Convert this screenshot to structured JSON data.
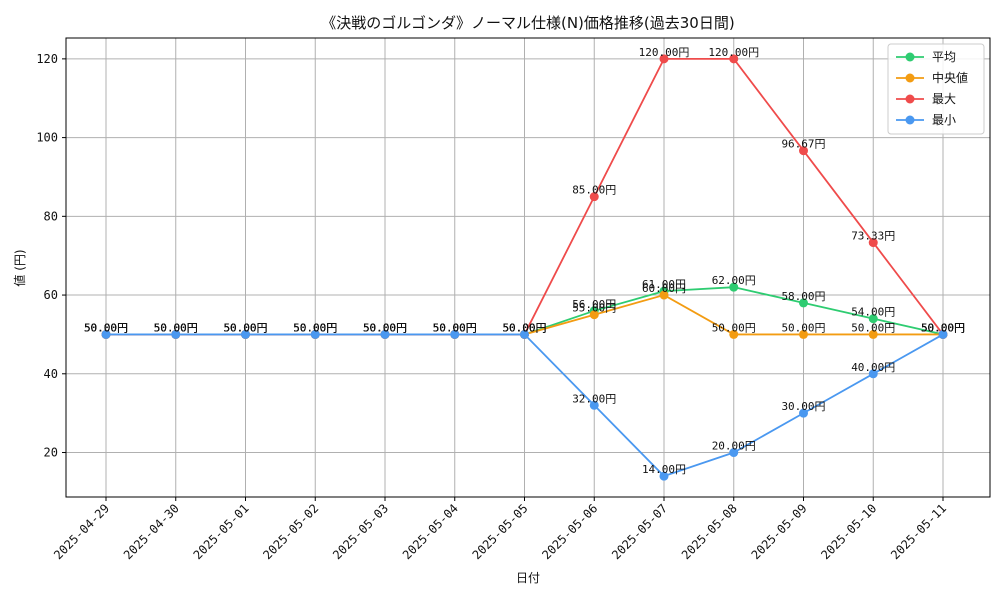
{
  "chart_data": {
    "type": "line",
    "title": "《決戦のゴルゴンダ》ノーマル仕様(N)価格推移(過去30日間)",
    "xlabel": "日付",
    "ylabel": "値 (円)",
    "ylim": [
      8.7,
      125.3
    ],
    "yticks": [
      20,
      40,
      60,
      80,
      100,
      120
    ],
    "grid": true,
    "legend_position": "top-right",
    "label_suffix": "円",
    "categories": [
      "2025-04-29",
      "2025-04-30",
      "2025-05-01",
      "2025-05-02",
      "2025-05-03",
      "2025-05-04",
      "2025-05-05",
      "2025-05-06",
      "2025-05-07",
      "2025-05-08",
      "2025-05-09",
      "2025-05-10",
      "2025-05-11"
    ],
    "series": [
      {
        "name": "平均",
        "color": "#2ecc71",
        "values": [
          50,
          50,
          50,
          50,
          50,
          50,
          50,
          56,
          61,
          62,
          58,
          54,
          50
        ]
      },
      {
        "name": "中央値",
        "color": "#f39c12",
        "values": [
          50,
          50,
          50,
          50,
          50,
          50,
          50,
          55,
          60,
          50,
          50,
          50,
          50
        ]
      },
      {
        "name": "最大",
        "color": "#ef4b4b",
        "values": [
          50,
          50,
          50,
          50,
          50,
          50,
          50,
          85,
          120,
          120,
          96.67,
          73.33,
          50
        ]
      },
      {
        "name": "最小",
        "color": "#4a98f0",
        "values": [
          50,
          50,
          50,
          50,
          50,
          50,
          50,
          32,
          14,
          20,
          30,
          40,
          50
        ]
      }
    ]
  }
}
